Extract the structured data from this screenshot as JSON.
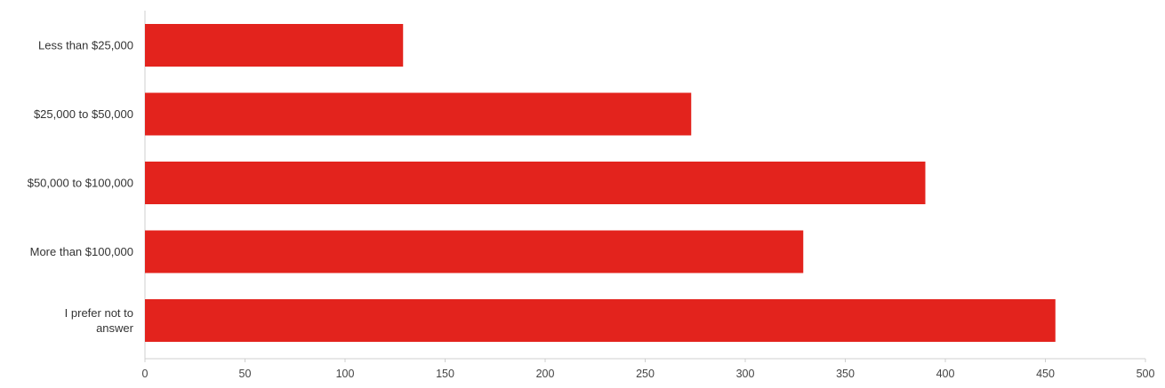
{
  "chart_data": {
    "type": "bar",
    "orientation": "horizontal",
    "categories": [
      "Less than $25,000",
      "$25,000 to $50,000",
      "$50,000 to $100,000",
      "More than $100,000",
      "I prefer not to answer"
    ],
    "category_label_lines": [
      [
        "Less than $25,000"
      ],
      [
        "$25,000 to $50,000"
      ],
      [
        "$50,000 to $100,000"
      ],
      [
        "More than $100,000"
      ],
      [
        "I prefer not to",
        "answer"
      ]
    ],
    "values": [
      129,
      273,
      390,
      329,
      455
    ],
    "xlim": [
      0,
      500
    ],
    "xticks": [
      0,
      50,
      100,
      150,
      200,
      250,
      300,
      350,
      400,
      450,
      500
    ],
    "xtick_labels": [
      "0",
      "50",
      "100",
      "150",
      "200",
      "250",
      "300",
      "350",
      "400",
      "450",
      "500"
    ],
    "bar_color": "#e3231d",
    "grid": false,
    "legend": "none"
  }
}
